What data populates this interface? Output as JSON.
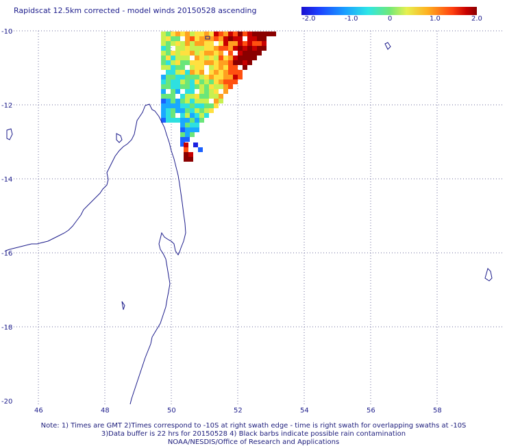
{
  "title": "Rapidscat 12.5km corrected - model winds 20150528 ascending",
  "colorbar": {
    "ticks": [
      "-2.0",
      "-1.0",
      "0",
      "1.0",
      "2.0"
    ],
    "range": [
      -2.0,
      2.0
    ]
  },
  "map": {
    "lon_range": [
      45,
      60
    ],
    "lat_range": [
      -20,
      -10
    ],
    "lon_ticks": [
      "46",
      "48",
      "50",
      "52",
      "54",
      "56",
      "58"
    ],
    "lat_ticks": [
      "-10",
      "-12",
      "-14",
      "-16",
      "-18",
      "-20"
    ],
    "grid_style": "dotted",
    "coastline_color": "#1a1a8a"
  },
  "notes": {
    "line1": "Note: 1) Times are GMT 2)Times correspond to -10S at right swath edge - time is right swath for overlapping swaths at -10S",
    "line2": "3)Data buffer is 22 hrs for 20150528 4) Black barbs indicate possible rain contamination",
    "line3": "NOAA/NESDIS/Office of Research and Applications"
  }
}
